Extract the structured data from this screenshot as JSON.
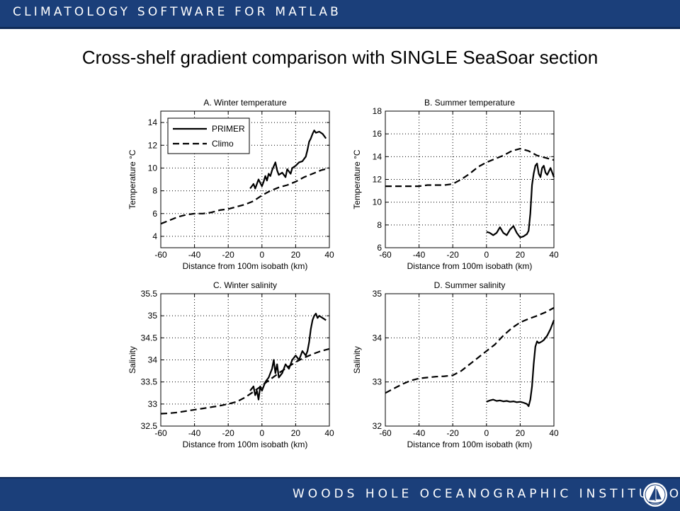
{
  "header": {
    "text": "CLIMATOLOGY SOFTWARE FOR MATLAB"
  },
  "slide": {
    "title": "Cross-shelf gradient comparison with SINGLE SeaSoar section"
  },
  "footer": {
    "text": "WOODS HOLE OCEANOGRAPHIC INSTITUTION",
    "logo_icon": "whoi-sailboat-seal-icon"
  },
  "colors": {
    "bar": "#1b3f7a",
    "plot_line": "#000000",
    "grid": "#000000"
  },
  "chart_data": [
    {
      "id": "A",
      "type": "line",
      "title": "A. Winter temperature",
      "xlabel": "Distance from 100m isobath (km)",
      "ylabel": "Temperature °C",
      "xlim": [
        -60,
        40
      ],
      "ylim": [
        3,
        15
      ],
      "xticks": [
        -60,
        -40,
        -20,
        0,
        20,
        40
      ],
      "xtick_labels": [
        "-60",
        "-40",
        "-20",
        "0",
        "20",
        "40"
      ],
      "yticks": [
        4,
        6,
        8,
        10,
        12,
        14
      ],
      "ytick_labels": [
        "4",
        "6",
        "8",
        "10",
        "12",
        "14"
      ],
      "grid": true,
      "legend": {
        "position": "top-left",
        "entries": [
          "PRIMER",
          "Climo"
        ]
      },
      "series": [
        {
          "name": "PRIMER",
          "style": "solid",
          "x": [
            -7,
            -5,
            -4,
            -2,
            0,
            1,
            2,
            3,
            4,
            5,
            6,
            8,
            9,
            10,
            12,
            14,
            15,
            17,
            18,
            20,
            22,
            24,
            26,
            27,
            28,
            29,
            30,
            31,
            32,
            34,
            36,
            38
          ],
          "y": [
            8.2,
            8.6,
            8.2,
            9.0,
            8.4,
            8.8,
            9.3,
            8.9,
            9.5,
            9.3,
            9.8,
            10.5,
            9.8,
            9.4,
            9.6,
            9.2,
            9.9,
            9.5,
            10.0,
            10.2,
            10.5,
            10.6,
            11.0,
            11.6,
            12.3,
            12.6,
            13.0,
            13.3,
            13.1,
            13.2,
            13.0,
            12.6
          ]
        },
        {
          "name": "Climo",
          "style": "dashed",
          "x": [
            -60,
            -55,
            -50,
            -45,
            -40,
            -35,
            -30,
            -25,
            -20,
            -15,
            -10,
            -5,
            0,
            5,
            10,
            15,
            20,
            25,
            30,
            35,
            40
          ],
          "y": [
            5.1,
            5.4,
            5.7,
            5.9,
            6.0,
            6.0,
            6.1,
            6.3,
            6.4,
            6.6,
            6.8,
            7.1,
            7.6,
            8.0,
            8.3,
            8.5,
            8.8,
            9.2,
            9.5,
            9.8,
            10.0
          ]
        }
      ]
    },
    {
      "id": "B",
      "type": "line",
      "title": "B. Summer temperature",
      "xlabel": "Distance from 100m isobath (km)",
      "ylabel": "Temperature °C",
      "xlim": [
        -60,
        40
      ],
      "ylim": [
        6,
        18
      ],
      "xticks": [
        -60,
        -40,
        -20,
        0,
        20,
        40
      ],
      "xtick_labels": [
        "-60",
        "-40",
        "-20",
        "0",
        "20",
        "40"
      ],
      "yticks": [
        6,
        8,
        10,
        12,
        14,
        16,
        18
      ],
      "ytick_labels": [
        "6",
        "8",
        "10",
        "12",
        "14",
        "16",
        "18"
      ],
      "grid": true,
      "series": [
        {
          "name": "",
          "style": "solid",
          "x": [
            0,
            2,
            4,
            6,
            8,
            10,
            12,
            14,
            16,
            18,
            20,
            22,
            24,
            25,
            26,
            27,
            28,
            29,
            30,
            31,
            32,
            33,
            34,
            35,
            36,
            38,
            40
          ],
          "y": [
            7.4,
            7.3,
            7.1,
            7.3,
            7.8,
            7.3,
            7.1,
            7.6,
            7.9,
            7.3,
            6.9,
            7.0,
            7.2,
            7.5,
            9.0,
            11.5,
            12.5,
            13.2,
            13.4,
            12.5,
            12.2,
            13.0,
            13.2,
            12.6,
            12.4,
            13.0,
            12.2
          ]
        },
        {
          "name": "",
          "style": "dashed",
          "x": [
            -60,
            -55,
            -50,
            -45,
            -40,
            -35,
            -30,
            -25,
            -20,
            -15,
            -10,
            -5,
            0,
            5,
            10,
            15,
            20,
            25,
            30,
            35,
            40
          ],
          "y": [
            11.4,
            11.4,
            11.4,
            11.4,
            11.4,
            11.5,
            11.5,
            11.5,
            11.6,
            12.0,
            12.5,
            13.1,
            13.5,
            13.8,
            14.1,
            14.5,
            14.7,
            14.5,
            14.1,
            13.9,
            13.7
          ]
        }
      ]
    },
    {
      "id": "C",
      "type": "line",
      "title": "C. Winter salinity",
      "xlabel": "Distance from 100m isobath (km)",
      "ylabel": "Salinity",
      "xlim": [
        -60,
        40
      ],
      "ylim": [
        32.5,
        35.5
      ],
      "xticks": [
        -60,
        -40,
        -20,
        0,
        20,
        40
      ],
      "xtick_labels": [
        "-60",
        "-40",
        "-20",
        "0",
        "20",
        "40"
      ],
      "yticks": [
        32.5,
        33,
        33.5,
        34,
        34.5,
        35,
        35.5
      ],
      "ytick_labels": [
        "32.5",
        "33",
        "33.5",
        "34",
        "34.5",
        "35",
        "35.5"
      ],
      "grid": true,
      "series": [
        {
          "name": "",
          "style": "solid",
          "x": [
            -7,
            -5,
            -4,
            -3,
            -2,
            -1,
            0,
            2,
            4,
            6,
            7,
            8,
            9,
            10,
            12,
            14,
            16,
            18,
            20,
            22,
            24,
            26,
            27,
            28,
            29,
            30,
            31,
            32,
            33,
            34,
            36,
            38
          ],
          "y": [
            33.3,
            33.4,
            33.2,
            33.3,
            33.1,
            33.4,
            33.3,
            33.5,
            33.6,
            33.8,
            34.0,
            33.7,
            33.9,
            33.6,
            33.7,
            33.9,
            33.8,
            34.0,
            34.1,
            34.0,
            34.2,
            34.1,
            34.2,
            34.4,
            34.7,
            34.9,
            35.0,
            35.05,
            34.95,
            35.0,
            34.95,
            34.9
          ]
        },
        {
          "name": "",
          "style": "dashed",
          "x": [
            -60,
            -55,
            -50,
            -45,
            -40,
            -35,
            -30,
            -25,
            -20,
            -15,
            -10,
            -5,
            0,
            5,
            10,
            15,
            20,
            25,
            30,
            35,
            40
          ],
          "y": [
            32.78,
            32.79,
            32.81,
            32.84,
            32.87,
            32.9,
            32.93,
            32.96,
            33.0,
            33.05,
            33.15,
            33.28,
            33.42,
            33.56,
            33.7,
            33.83,
            33.95,
            34.05,
            34.13,
            34.2,
            34.25
          ]
        }
      ]
    },
    {
      "id": "D",
      "type": "line",
      "title": "D. Summer salinity",
      "xlabel": "Distance from 100m isobath (km)",
      "ylabel": "Salinity",
      "xlim": [
        -60,
        40
      ],
      "ylim": [
        32,
        35
      ],
      "xticks": [
        -60,
        -40,
        -20,
        0,
        20,
        40
      ],
      "xtick_labels": [
        "-60",
        "-40",
        "-20",
        "0",
        "20",
        "40"
      ],
      "yticks": [
        32,
        33,
        34,
        35
      ],
      "ytick_labels": [
        "32",
        "33",
        "34",
        "35"
      ],
      "grid": true,
      "series": [
        {
          "name": "",
          "style": "solid",
          "x": [
            0,
            2,
            4,
            6,
            8,
            10,
            12,
            14,
            16,
            18,
            20,
            22,
            24,
            25,
            26,
            27,
            28,
            29,
            30,
            31,
            32,
            33,
            34,
            36,
            38,
            40
          ],
          "y": [
            32.55,
            32.58,
            32.6,
            32.57,
            32.58,
            32.56,
            32.57,
            32.55,
            32.56,
            32.54,
            32.55,
            32.53,
            32.5,
            32.45,
            32.6,
            32.9,
            33.4,
            33.8,
            33.92,
            33.88,
            33.9,
            33.92,
            33.95,
            34.05,
            34.2,
            34.4
          ]
        },
        {
          "name": "",
          "style": "dashed",
          "x": [
            -60,
            -55,
            -50,
            -45,
            -40,
            -35,
            -30,
            -25,
            -20,
            -15,
            -10,
            -5,
            0,
            5,
            10,
            15,
            20,
            25,
            30,
            35,
            40
          ],
          "y": [
            32.75,
            32.85,
            32.95,
            33.03,
            33.08,
            33.1,
            33.12,
            33.13,
            33.15,
            33.25,
            33.4,
            33.55,
            33.7,
            33.85,
            34.05,
            34.22,
            34.35,
            34.43,
            34.5,
            34.58,
            34.68
          ]
        }
      ]
    }
  ]
}
